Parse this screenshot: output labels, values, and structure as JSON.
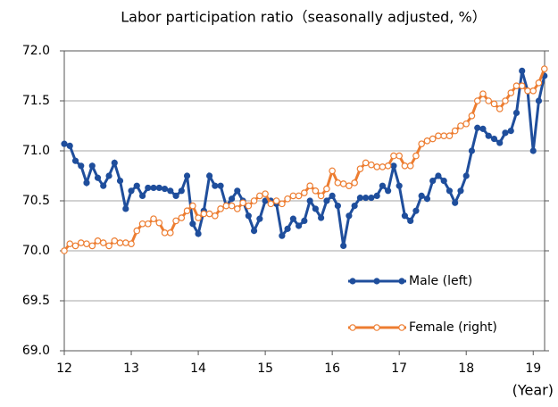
{
  "chart_data": {
    "type": "line",
    "title": "Labor participation ratio（seasonally adjusted, %）",
    "x_label": "(Year)",
    "x": [
      12,
      12.083,
      12.167,
      12.25,
      12.333,
      12.417,
      12.5,
      12.583,
      12.667,
      12.75,
      12.833,
      12.917,
      13,
      13.083,
      13.167,
      13.25,
      13.333,
      13.417,
      13.5,
      13.583,
      13.667,
      13.75,
      13.833,
      13.917,
      14,
      14.083,
      14.167,
      14.25,
      14.333,
      14.417,
      14.5,
      14.583,
      14.667,
      14.75,
      14.833,
      14.917,
      15,
      15.083,
      15.167,
      15.25,
      15.333,
      15.417,
      15.5,
      15.583,
      15.667,
      15.75,
      15.833,
      15.917,
      16,
      16.083,
      16.167,
      16.25,
      16.333,
      16.417,
      16.5,
      16.583,
      16.667,
      16.75,
      16.833,
      16.917,
      17,
      17.083,
      17.167,
      17.25,
      17.333,
      17.417,
      17.5,
      17.583,
      17.667,
      17.75,
      17.833,
      17.917,
      18,
      18.083,
      18.167,
      18.25,
      18.333,
      18.417,
      18.5,
      18.583,
      18.667,
      18.75,
      18.833,
      18.917,
      19,
      19.083,
      19.167
    ],
    "series": [
      {
        "name": "Male (left)",
        "color": "#1f4e9c",
        "marker": "filled",
        "values": [
          71.07,
          71.05,
          70.9,
          70.85,
          70.68,
          70.85,
          70.73,
          70.65,
          70.75,
          70.88,
          70.7,
          70.42,
          70.6,
          70.65,
          70.55,
          70.63,
          70.63,
          70.63,
          70.62,
          70.6,
          70.55,
          70.6,
          70.75,
          70.27,
          70.17,
          70.4,
          70.75,
          70.65,
          70.65,
          70.45,
          70.52,
          70.6,
          70.5,
          70.35,
          70.2,
          70.32,
          70.5,
          70.5,
          70.47,
          70.15,
          70.22,
          70.32,
          70.25,
          70.3,
          70.5,
          70.42,
          70.33,
          70.5,
          70.55,
          70.45,
          70.05,
          70.35,
          70.45,
          70.53,
          70.53,
          70.53,
          70.55,
          70.65,
          70.6,
          70.85,
          70.65,
          70.35,
          70.3,
          70.4,
          70.55,
          70.52,
          70.7,
          70.75,
          70.7,
          70.6,
          70.48,
          70.6,
          70.75,
          71.0,
          71.23,
          71.22,
          71.15,
          71.12,
          71.08,
          71.18,
          71.2,
          71.38,
          71.8,
          71.6,
          71.0,
          71.5,
          71.75
        ]
      },
      {
        "name": "Female (right)",
        "color": "#ed7d31",
        "marker": "hollow",
        "values": [
          70.0,
          70.07,
          70.05,
          70.08,
          70.07,
          70.05,
          70.1,
          70.08,
          70.05,
          70.1,
          70.08,
          70.08,
          70.07,
          70.2,
          70.27,
          70.27,
          70.32,
          70.28,
          70.18,
          70.18,
          70.3,
          70.33,
          70.4,
          70.45,
          70.33,
          70.37,
          70.37,
          70.35,
          70.42,
          70.45,
          70.45,
          70.42,
          70.48,
          70.45,
          70.5,
          70.55,
          70.57,
          70.47,
          70.5,
          70.47,
          70.52,
          70.55,
          70.55,
          70.58,
          70.65,
          70.6,
          70.55,
          70.62,
          70.8,
          70.68,
          70.67,
          70.65,
          70.68,
          70.82,
          70.88,
          70.86,
          70.84,
          70.84,
          70.85,
          70.95,
          70.95,
          70.85,
          70.85,
          70.95,
          71.07,
          71.1,
          71.12,
          71.15,
          71.15,
          71.15,
          71.2,
          71.25,
          71.27,
          71.35,
          71.5,
          71.57,
          71.5,
          71.47,
          71.42,
          71.5,
          71.58,
          71.65,
          71.65,
          71.6,
          71.6,
          71.68,
          71.82
        ]
      }
    ],
    "xlim": [
      12,
      19.17
    ],
    "xticks": [
      12,
      13,
      14,
      15,
      16,
      17,
      18,
      19
    ],
    "ylim": [
      69,
      72
    ],
    "yticks": [
      {
        "value": 69,
        "label": "69.0"
      },
      {
        "value": 69.5,
        "label": "69.5"
      },
      {
        "value": 70,
        "label": "70.0"
      },
      {
        "value": 70.5,
        "label": "70.5"
      },
      {
        "value": 71,
        "label": "71.0"
      },
      {
        "value": 71.5,
        "label": "71.5"
      },
      {
        "value": 72,
        "label": "72.0"
      }
    ],
    "grid": true
  }
}
